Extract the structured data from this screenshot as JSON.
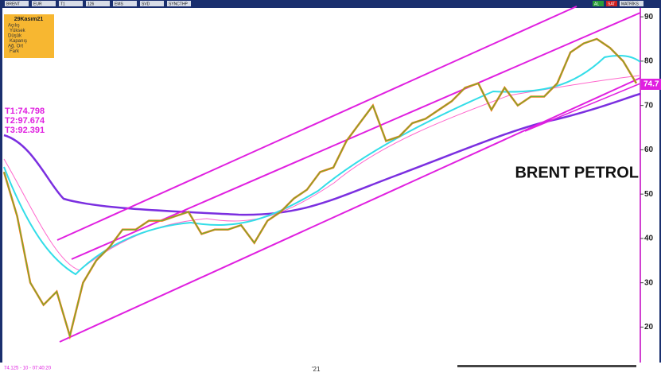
{
  "toolbar": {
    "items": [
      "BRENT",
      "EUR",
      "T1",
      "126",
      "EMS",
      "SVD",
      "SYNCTHP"
    ],
    "right": [
      "AL",
      "SAT",
      "MATRİKS"
    ]
  },
  "info_box": {
    "date": "29Kasım21",
    "labels": [
      "Açılış",
      "Yüksek",
      "Düşük",
      "Kapanış",
      "Ağ. Ort",
      "Fark"
    ]
  },
  "targets": [
    "T1:74.798",
    "T2:97.674",
    "T3:92.391"
  ],
  "title": "BRENT PETROL",
  "last_price": "74.7",
  "status": "74.125 - 10 - 07:40:20",
  "x_label": "'21",
  "chart": {
    "type": "line",
    "color": "#f07818",
    "values": [
      55,
      45,
      30,
      25,
      28,
      18,
      30,
      35,
      38,
      42,
      42,
      44,
      44,
      45,
      46,
      41,
      42,
      42,
      43,
      39,
      44,
      46,
      49,
      51,
      55,
      56,
      62,
      66,
      70,
      62,
      63,
      66,
      67,
      69,
      71,
      74,
      75,
      69,
      74,
      70,
      72,
      72,
      75,
      82,
      84,
      85,
      83,
      80,
      75
    ],
    "ylim": [
      12,
      92
    ],
    "yticks": [
      20,
      30,
      40,
      50,
      60,
      70,
      80,
      90
    ]
  }
}
